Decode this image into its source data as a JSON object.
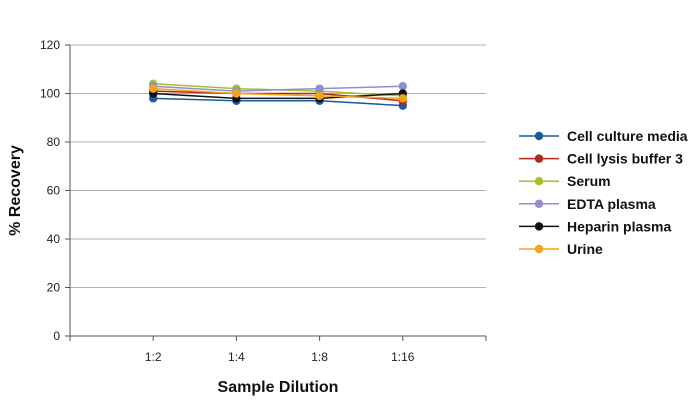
{
  "chart_data": {
    "type": "line",
    "title": "",
    "xlabel": "Sample Dilution",
    "ylabel": "% Recovery",
    "categories": [
      "1:2",
      "1:4",
      "1:8",
      "1:16"
    ],
    "ylim": [
      0,
      120
    ],
    "yticks": [
      0,
      20,
      40,
      60,
      80,
      100,
      120
    ],
    "grid": true,
    "legend_position": "right",
    "series": [
      {
        "name": "Cell culture media",
        "color": "#1a5a9e",
        "values": [
          98,
          97,
          97,
          95
        ]
      },
      {
        "name": "Cell lysis buffer 3",
        "color": "#b3261e",
        "values": [
          101,
          100,
          100,
          97
        ]
      },
      {
        "name": "Serum",
        "color": "#a3c12a",
        "values": [
          104,
          102,
          101,
          99
        ]
      },
      {
        "name": "EDTA plasma",
        "color": "#8f8fcf",
        "values": [
          103,
          101,
          102,
          103
        ]
      },
      {
        "name": "Heparin plasma",
        "color": "#111111",
        "values": [
          100,
          98,
          98,
          100
        ]
      },
      {
        "name": "Urine",
        "color": "#f5a31a",
        "values": [
          102,
          100,
          99,
          98
        ]
      }
    ]
  }
}
